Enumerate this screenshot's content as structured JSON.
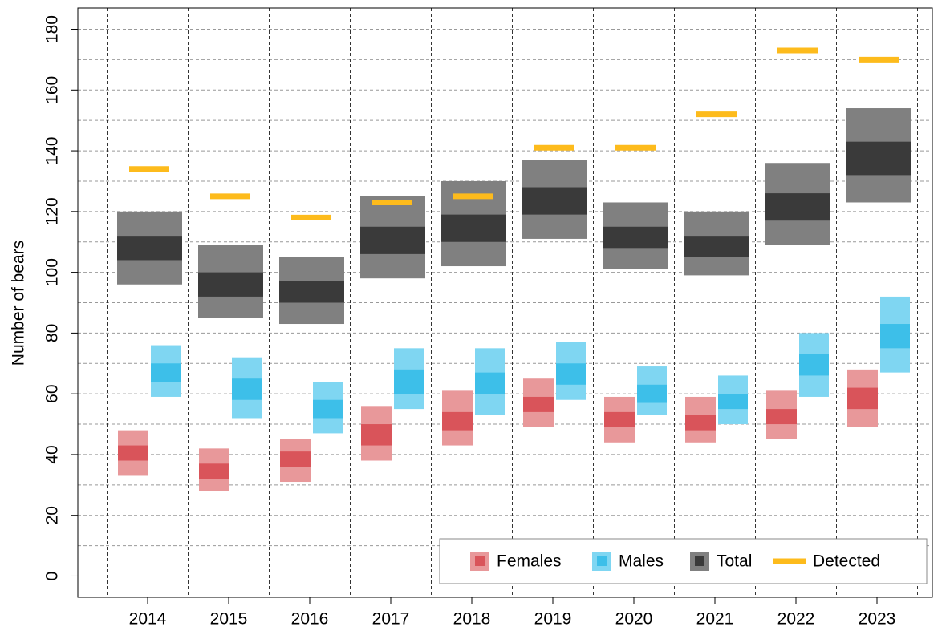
{
  "chart_data": {
    "type": "range_box",
    "y_label": "Number of bears",
    "categories": [
      "2014",
      "2015",
      "2016",
      "2017",
      "2018",
      "2019",
      "2020",
      "2021",
      "2022",
      "2023"
    ],
    "ylim": [
      -7,
      187
    ],
    "yticks": [
      0,
      20,
      40,
      60,
      80,
      100,
      120,
      140,
      160,
      180
    ],
    "grid": true,
    "legend": "bottom-right",
    "series": [
      {
        "name": "Females",
        "color": "#e8989a",
        "inner_color": "#d9545a",
        "low": [
          33,
          28,
          31,
          38,
          43,
          49,
          44,
          44,
          45,
          49
        ],
        "high": [
          48,
          42,
          45,
          56,
          61,
          65,
          59,
          59,
          61,
          68
        ],
        "inner_low": [
          38,
          32,
          36,
          43,
          48,
          54,
          49,
          48,
          50,
          55
        ],
        "inner_high": [
          43,
          37,
          41,
          50,
          54,
          59,
          54,
          53,
          55,
          62
        ]
      },
      {
        "name": "Males",
        "color": "#7fd6f2",
        "inner_color": "#3dbfe9",
        "low": [
          59,
          52,
          47,
          55,
          53,
          58,
          53,
          50,
          59,
          67
        ],
        "high": [
          76,
          72,
          64,
          75,
          75,
          77,
          69,
          66,
          80,
          92
        ],
        "inner_low": [
          64,
          58,
          52,
          60,
          60,
          63,
          57,
          55,
          66,
          75
        ],
        "inner_high": [
          70,
          65,
          58,
          68,
          67,
          70,
          63,
          60,
          73,
          83
        ]
      },
      {
        "name": "Total",
        "color": "#808080",
        "inner_color": "#3a3a3a",
        "low": [
          96,
          85,
          83,
          98,
          102,
          111,
          101,
          99,
          109,
          123
        ],
        "high": [
          120,
          109,
          105,
          125,
          130,
          137,
          123,
          120,
          136,
          154
        ],
        "inner_low": [
          104,
          92,
          90,
          106,
          110,
          119,
          108,
          105,
          117,
          132
        ],
        "inner_high": [
          112,
          100,
          97,
          115,
          119,
          128,
          115,
          112,
          126,
          143
        ]
      },
      {
        "name": "Detected",
        "color": "#fdbb1c",
        "values": [
          134,
          125,
          118,
          123,
          125,
          141,
          141,
          152,
          173,
          170
        ]
      }
    ]
  }
}
